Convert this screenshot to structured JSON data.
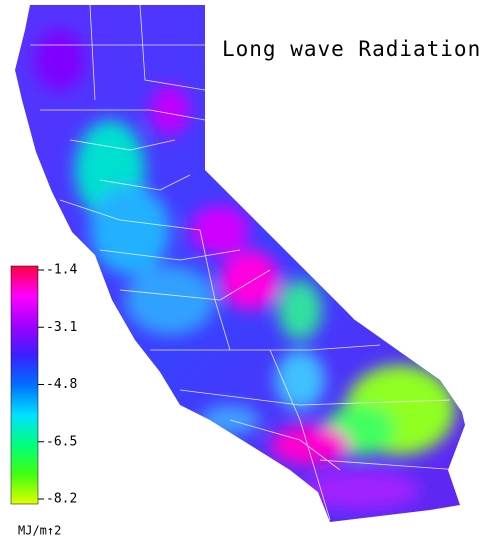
{
  "title": "Long wave Radiation",
  "colorbar": {
    "lim": [
      -8.2,
      -1.4
    ],
    "ticks": [
      -1.4,
      -3.1,
      -4.8,
      -6.5,
      -8.2
    ],
    "unit": "MJ/m↑2",
    "colors": [
      "#e0ff00",
      "#40ff10",
      "#00ff80",
      "#00e0ff",
      "#0070ff",
      "#3a20ff",
      "#a000ff",
      "#ff00ff",
      "#ff0040"
    ]
  }
}
